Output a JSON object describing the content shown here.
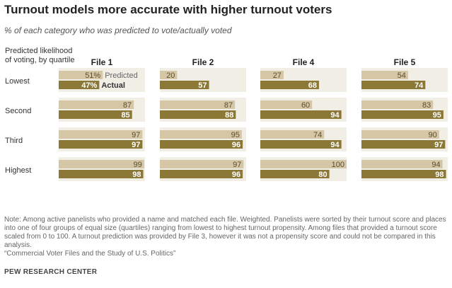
{
  "title": "Turnout models more accurate with higher turnout voters",
  "subtitle": "% of each category who was predicted to vote/actually voted",
  "chart_data": {
    "type": "bar",
    "orientation": "horizontal",
    "row_header": "Predicted likelihood of voting, by quartile",
    "row_header_lines": [
      "Predicted likelihood",
      "of voting, by quartile"
    ],
    "categories": [
      "Lowest",
      "Second",
      "Third",
      "Highest"
    ],
    "panels": [
      {
        "name": "File 1",
        "series": [
          {
            "name": "Predicted",
            "values": [
              51,
              87,
              97,
              99
            ]
          },
          {
            "name": "Actual",
            "values": [
              47,
              85,
              97,
              98
            ]
          }
        ],
        "first_row_labels": {
          "predicted": "51%",
          "actual": "47%"
        }
      },
      {
        "name": "File 2",
        "series": [
          {
            "name": "Predicted",
            "values": [
              20,
              87,
              95,
              97
            ]
          },
          {
            "name": "Actual",
            "values": [
              57,
              88,
              96,
              96
            ]
          }
        ]
      },
      {
        "name": "File 4",
        "series": [
          {
            "name": "Predicted",
            "values": [
              27,
              60,
              74,
              100
            ]
          },
          {
            "name": "Actual",
            "values": [
              68,
              94,
              94,
              80
            ]
          }
        ]
      },
      {
        "name": "File 5",
        "series": [
          {
            "name": "Predicted",
            "values": [
              54,
              83,
              90,
              94
            ]
          },
          {
            "name": "Actual",
            "values": [
              74,
              95,
              97,
              98
            ]
          }
        ]
      }
    ],
    "legend": {
      "predicted": "Predicted",
      "actual": "Actual"
    },
    "xlim": [
      0,
      100
    ],
    "colors": {
      "predicted": "#d5c6a6",
      "actual": "#8b7836",
      "background": "#f1eee6",
      "label_dark": "#5a4e2c",
      "label_light": "#ffffff"
    }
  },
  "note_lines": [
    "Note: Among active panelists who provided a name and matched each file. Weighted. Panelists were sorted by their turnout score and places into one of four groups of equal size (quartiles) ranging from lowest to highest turnout propensity. Among files that provided a turnout score scaled from 0 to 100. A turnout prediction was provided by File 3, however it was not a propensity score and could not be compared in this analysis.",
    "“Commercial Voter Files and the Study of U.S. Politics”"
  ],
  "source": "PEW RESEARCH CENTER"
}
